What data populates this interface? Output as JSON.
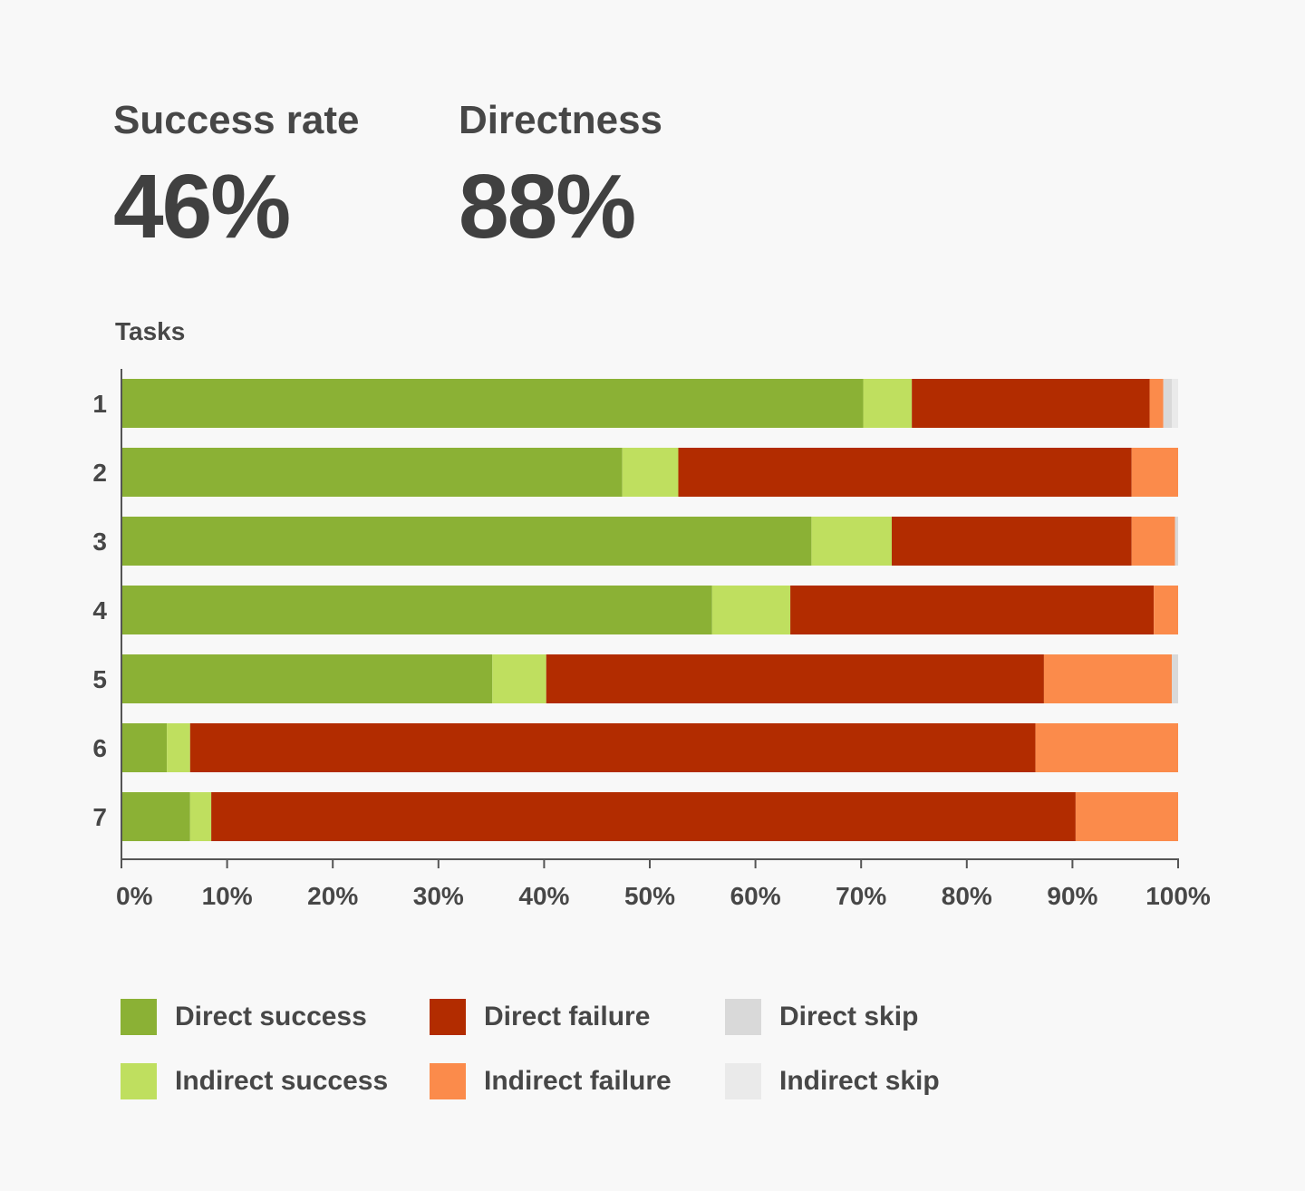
{
  "stats": {
    "success_rate": {
      "label": "Success rate",
      "value": "46%"
    },
    "directness": {
      "label": "Directness",
      "value": "88%"
    }
  },
  "chart_data": {
    "type": "bar",
    "orientation": "horizontal",
    "stacked": true,
    "title": "",
    "ylabel": "Tasks",
    "xlabel": "",
    "xlim": [
      0,
      100
    ],
    "x_ticks": [
      "0%",
      "10%",
      "20%",
      "30%",
      "40%",
      "50%",
      "60%",
      "70%",
      "80%",
      "90%",
      "100%"
    ],
    "categories": [
      "1",
      "2",
      "3",
      "4",
      "5",
      "6",
      "7"
    ],
    "series": [
      {
        "name": "Direct success",
        "color": "#8bb135",
        "values": [
          70.2,
          47.4,
          65.3,
          55.9,
          35.1,
          4.3,
          6.5
        ]
      },
      {
        "name": "Indirect success",
        "color": "#bfdf5f",
        "values": [
          4.6,
          5.3,
          7.6,
          7.4,
          5.1,
          2.2,
          2.0
        ]
      },
      {
        "name": "Direct failure",
        "color": "#b22c00",
        "values": [
          22.5,
          42.9,
          22.7,
          34.4,
          47.1,
          80.0,
          81.8
        ]
      },
      {
        "name": "Indirect failure",
        "color": "#fb8b4b",
        "values": [
          1.3,
          4.4,
          4.1,
          2.3,
          12.1,
          13.5,
          9.7
        ]
      },
      {
        "name": "Direct skip",
        "color": "#d9d9d9",
        "values": [
          0.8,
          0,
          0.3,
          0,
          0.6,
          0,
          0
        ]
      },
      {
        "name": "Indirect skip",
        "color": "#eaeaea",
        "values": [
          0.6,
          0,
          0,
          0,
          0,
          0,
          0
        ]
      }
    ],
    "grid": false,
    "legend_position": "bottom"
  }
}
